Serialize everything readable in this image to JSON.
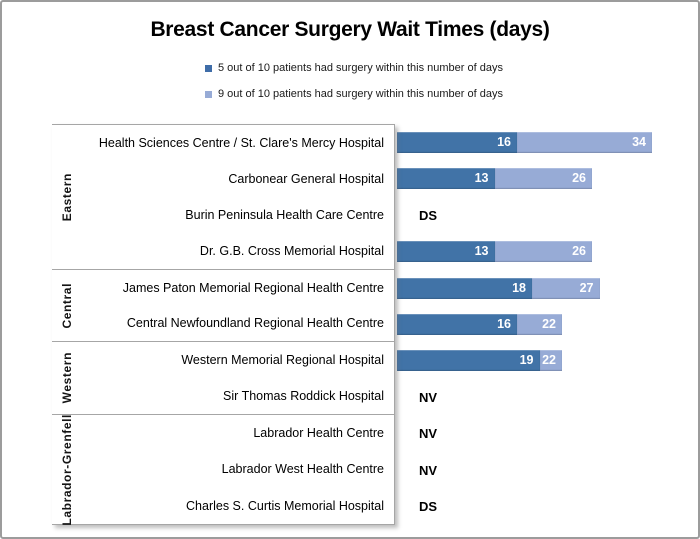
{
  "title": "Breast Cancer Surgery Wait Times (days)",
  "legend": [
    {
      "label": "5 out of 10 patients had surgery within this number of days",
      "color": "#3f6da8"
    },
    {
      "label": "9 out of 10 patients had surgery within this number of days",
      "color": "#97abd6"
    }
  ],
  "colors": {
    "series_p50": "#4173a7",
    "series_p90": "#97abd6",
    "grid_line": "#a6a6a6",
    "frame_border": "#9c9c9c",
    "value_label": "#ffffff",
    "text": "#000000"
  },
  "chart_data": {
    "type": "bar",
    "orientation": "horizontal",
    "title": "Breast Cancer Surgery Wait Times (days)",
    "x_axis": {
      "min": 0,
      "max": 40,
      "visible": false,
      "grid": false
    },
    "legend_position": "top",
    "series_names": [
      "5 out of 10 patients had surgery within this number of days",
      "9 out of 10 patients had surgery within this number of days"
    ],
    "groups": [
      {
        "region": "Eastern",
        "hospitals": [
          {
            "name": "Health Sciences Centre / St. Clare's Mercy Hospital",
            "p50": 16,
            "p90": 34
          },
          {
            "name": "Carbonear General Hospital",
            "p50": 13,
            "p90": 26
          },
          {
            "name": "Burin Peninsula Health Care Centre",
            "note": "DS"
          },
          {
            "name": "Dr. G.B. Cross Memorial Hospital",
            "p50": 13,
            "p90": 26
          }
        ]
      },
      {
        "region": "Central",
        "hospitals": [
          {
            "name": "James Paton Memorial Regional Health Centre",
            "p50": 18,
            "p90": 27
          },
          {
            "name": "Central Newfoundland Regional Health Centre",
            "p50": 16,
            "p90": 22
          }
        ]
      },
      {
        "region": "Western",
        "hospitals": [
          {
            "name": "Western Memorial Regional Hospital",
            "p50": 19,
            "p90": 22
          },
          {
            "name": "Sir Thomas Roddick Hospital",
            "note": "NV"
          }
        ]
      },
      {
        "region": "Labrador-Grenfell",
        "hospitals": [
          {
            "name": "Labrador Health Centre",
            "note": "NV"
          },
          {
            "name": "Labrador West Health Centre",
            "note": "NV"
          },
          {
            "name": "Charles S. Curtis Memorial Hospital",
            "note": "DS"
          }
        ]
      }
    ]
  }
}
